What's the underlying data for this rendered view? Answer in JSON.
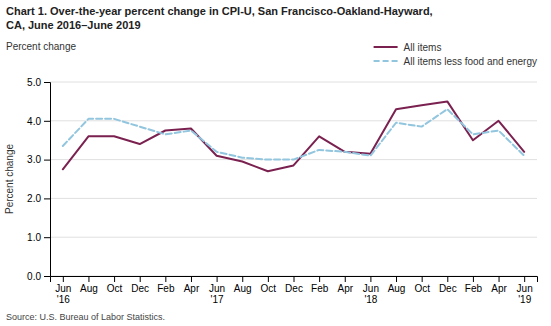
{
  "chart_data": {
    "type": "line",
    "title": "Chart 1. Over-the-year percent change in CPI-U, San Francisco-Oakland-Hayward,\nCA, June 2016–June 2019",
    "y_label": "Percent change",
    "source": "Source: U.S. Bureau of Labor Statistics.",
    "categories": [
      "Jun\n'16",
      "Aug",
      "Oct",
      "Dec",
      "Feb",
      "Apr",
      "Jun\n'17",
      "Aug",
      "Oct",
      "Dec",
      "Feb",
      "Apr",
      "Jun\n'18",
      "Aug",
      "Oct",
      "Dec",
      "Feb",
      "Apr",
      "Jun\n'19"
    ],
    "series": [
      {
        "name": "All items",
        "color": "#7b2150",
        "line_style": "solid",
        "values": [
          2.75,
          3.6,
          3.6,
          3.4,
          3.75,
          3.8,
          3.1,
          2.95,
          2.7,
          2.85,
          3.6,
          3.2,
          3.15,
          4.3,
          4.4,
          4.5,
          3.5,
          4.0,
          3.2
        ]
      },
      {
        "name": "All items less food and energy",
        "color": "#92c5de",
        "line_style": "dashed",
        "values": [
          3.35,
          4.05,
          4.05,
          3.85,
          3.65,
          3.75,
          3.2,
          3.05,
          3.0,
          3.0,
          3.25,
          3.2,
          3.1,
          3.95,
          3.85,
          4.3,
          3.65,
          3.75,
          3.1
        ]
      }
    ],
    "ylim": [
      0.0,
      5.0
    ],
    "yticks": [
      {
        "value": 0.0,
        "label": "0.0"
      },
      {
        "value": 1.0,
        "label": "1.0"
      },
      {
        "value": 2.0,
        "label": "2.0"
      },
      {
        "value": 3.0,
        "label": "3.0"
      },
      {
        "value": 4.0,
        "label": "4.0"
      },
      {
        "value": 5.0,
        "label": "5.0"
      }
    ],
    "grid": true,
    "legend": "upper right"
  }
}
